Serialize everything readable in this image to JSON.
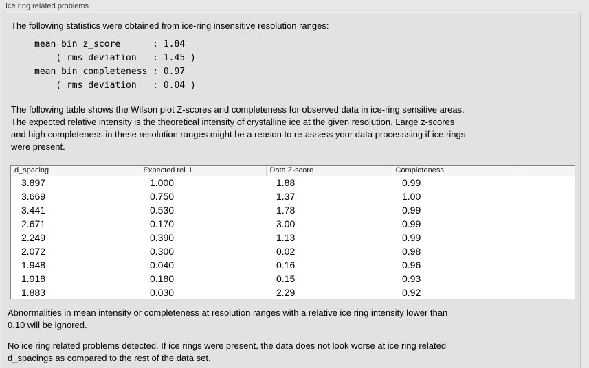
{
  "panel": {
    "title": "Ice ring related problems"
  },
  "stats": {
    "intro": "The following statistics were obtained from ice-ring insensitive resolution ranges:",
    "values": "mean bin z_score      : 1.84\n    ( rms deviation   : 1.45 )\nmean bin completeness : 0.97\n    ( rms deviation   : 0.04 )"
  },
  "description": "The following table shows the Wilson plot Z-scores and completeness for observed data in ice-ring sensitive areas.\nThe expected relative intensity is the theoretical intensity of crystalline ice at the given resolution. Large z-scores\nand high completeness in these resolution ranges might be a reason to re-assess your data processsing if ice rings\nwere present.",
  "table": {
    "headers": [
      "d_spacing",
      "Expected rel. I",
      "Data Z-score",
      "Completeness",
      ""
    ],
    "rows": [
      [
        "3.897",
        "1.000",
        "1.88",
        "0.99"
      ],
      [
        "3.669",
        "0.750",
        "1.37",
        "1.00"
      ],
      [
        "3.441",
        "0.530",
        "1.78",
        "0.99"
      ],
      [
        "2.671",
        "0.170",
        "3.00",
        "0.99"
      ],
      [
        "2.249",
        "0.390",
        "1.13",
        "0.99"
      ],
      [
        "2.072",
        "0.300",
        "0.02",
        "0.98"
      ],
      [
        "1.948",
        "0.040",
        "0.16",
        "0.96"
      ],
      [
        "1.918",
        "0.180",
        "0.15",
        "0.93"
      ],
      [
        "1.883",
        "0.030",
        "2.29",
        "0.92"
      ]
    ]
  },
  "notes": {
    "ignore": "Abnormalities in mean intensity or completeness at resolution ranges with a relative ice ring intensity lower than\n0.10 will be ignored.",
    "conclusion": "No ice ring related problems detected. If ice rings were present, the data does not look worse at ice ring related\nd_spacings as compared to the rest of the data set."
  },
  "colors": {
    "page_background": "#e7e7e7",
    "box_background": "#e2e2e2",
    "table_header_background": "#f5f5f5",
    "table_border": "#828282"
  }
}
